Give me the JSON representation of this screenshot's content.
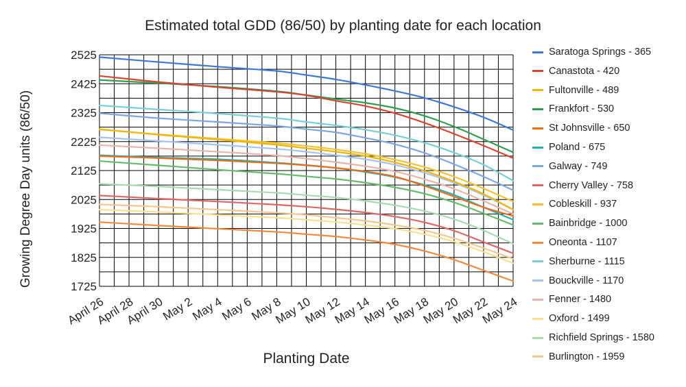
{
  "chart_data": {
    "type": "line",
    "title": "Estimated total GDD (86/50) by planting date for each location",
    "xlabel": "Planting Date",
    "ylabel": "Growing Degree Day units (86/50)",
    "ylim": [
      1725,
      2525
    ],
    "yticks": [
      1725,
      1825,
      1925,
      2025,
      2125,
      2225,
      2325,
      2425,
      2525
    ],
    "x_tick_labels": [
      "April 26",
      "April 28",
      "April 30",
      "May 2",
      "May 4",
      "May 6",
      "May 8",
      "May 10",
      "May 12",
      "May 14",
      "May 16",
      "May 18",
      "May 20",
      "May 22",
      "May 24"
    ],
    "x_days": [
      0,
      4,
      8,
      12,
      14,
      16,
      18,
      20,
      22,
      24,
      26,
      28
    ],
    "x_range_days": [
      0,
      28
    ],
    "grid": true,
    "legend_position": "right",
    "series": [
      {
        "name": "Saratoga Springs - 365",
        "color": "#3b78d8",
        "values": [
          2517,
          2500,
          2484,
          2469,
          2455,
          2440,
          2421,
          2400,
          2376,
          2345,
          2309,
          2265
        ]
      },
      {
        "name": "Canastota - 420",
        "color": "#d9432f",
        "values": [
          2452,
          2431,
          2413,
          2397,
          2385,
          2366,
          2348,
          2323,
          2290,
          2252,
          2211,
          2168
        ]
      },
      {
        "name": "Fultonville - 489",
        "color": "#f4b400",
        "values": [
          2268,
          2249,
          2232,
          2214,
          2202,
          2190,
          2175,
          2153,
          2124,
          2087,
          2044,
          1990
        ]
      },
      {
        "name": "Frankfort - 530",
        "color": "#2e9e4f",
        "values": [
          2438,
          2427,
          2415,
          2399,
          2386,
          2372,
          2359,
          2341,
          2314,
          2277,
          2233,
          2188
        ]
      },
      {
        "name": "St Johnsville - 650",
        "color": "#ef6c1a",
        "values": [
          2175,
          2168,
          2160,
          2150,
          2143,
          2134,
          2122,
          2104,
          2072,
          2035,
          1998,
          1968
        ]
      },
      {
        "name": "Poland - 675",
        "color": "#24b0b0",
        "values": [
          2178,
          2170,
          2164,
          2152,
          2144,
          2134,
          2120,
          2102,
          2075,
          2041,
          1998,
          1955
        ]
      },
      {
        "name": "Galway - 749",
        "color": "#7aa7e6",
        "values": [
          2323,
          2306,
          2293,
          2279,
          2268,
          2257,
          2238,
          2216,
          2186,
          2147,
          2104,
          2057
        ]
      },
      {
        "name": "Cherry Valley - 758",
        "color": "#e06666",
        "values": [
          2039,
          2028,
          2018,
          2007,
          2000,
          1991,
          1980,
          1966,
          1946,
          1917,
          1878,
          1839
        ]
      },
      {
        "name": "Cobleskill - 937",
        "color": "#f1c232",
        "values": [
          2267,
          2250,
          2235,
          2220,
          2210,
          2198,
          2183,
          2163,
          2137,
          2104,
          2063,
          2018
        ]
      },
      {
        "name": "Bainbridge - 1000",
        "color": "#66bb6a",
        "values": [
          2158,
          2143,
          2128,
          2114,
          2105,
          2096,
          2083,
          2067,
          2045,
          2015,
          1977,
          1937
        ]
      },
      {
        "name": "Oneonta - 1107",
        "color": "#f6883e",
        "values": [
          1947,
          1935,
          1924,
          1913,
          1905,
          1897,
          1885,
          1870,
          1847,
          1817,
          1780,
          1743
        ]
      },
      {
        "name": "Sherburne - 1115",
        "color": "#76d0d6",
        "values": [
          2350,
          2336,
          2322,
          2306,
          2293,
          2281,
          2266,
          2247,
          2221,
          2187,
          2145,
          2090
        ]
      },
      {
        "name": "Bouckville - 1170",
        "color": "#a4c2f4",
        "values": [
          2240,
          2227,
          2214,
          2200,
          2190,
          2178,
          2164,
          2145,
          2117,
          2083,
          2040,
          1990
        ]
      },
      {
        "name": "Fenner - 1480",
        "color": "#eab3a8",
        "values": [
          2213,
          2202,
          2190,
          2177,
          2166,
          2154,
          2140,
          2122,
          2095,
          2062,
          2020,
          1975
        ]
      },
      {
        "name": "Oxford - 1499",
        "color": "#f9e08f",
        "values": [
          1990,
          1982,
          1972,
          1962,
          1955,
          1947,
          1937,
          1924,
          1905,
          1879,
          1844,
          1805
        ]
      },
      {
        "name": "Richfield Springs - 1580",
        "color": "#a8dbb1",
        "values": [
          2079,
          2070,
          2059,
          2048,
          2040,
          2032,
          2020,
          2005,
          1985,
          1957,
          1918,
          1872
        ]
      },
      {
        "name": "Burlington - 1959",
        "color": "#f7c58e",
        "values": [
          2008,
          2000,
          1990,
          1979,
          1972,
          1962,
          1951,
          1937,
          1918,
          1891,
          1857,
          1820
        ]
      }
    ]
  }
}
